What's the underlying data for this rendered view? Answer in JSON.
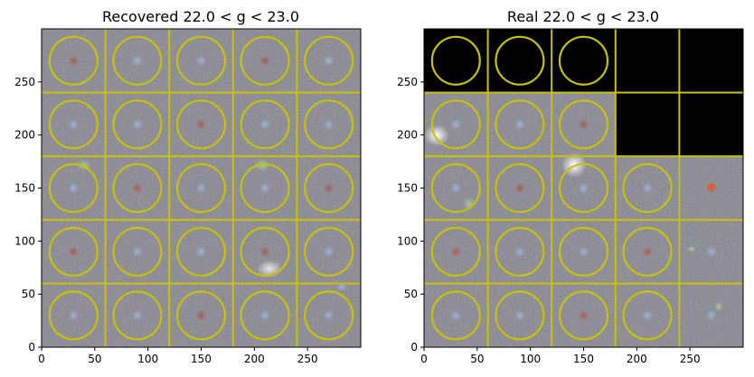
{
  "colors": {
    "grid_line": "#c8c10a",
    "ring": "#c8c10a",
    "noise_base": "#2f2f2f",
    "blank_cell": "#000000",
    "axis": "#000000"
  },
  "chart_data": [
    {
      "type": "image",
      "title": "Recovered 22.0 < g < 23.0",
      "xlabel": "",
      "ylabel": "",
      "xlim": [
        0,
        300
      ],
      "ylim": [
        0,
        300
      ],
      "xticks": [
        0,
        50,
        100,
        150,
        200,
        250
      ],
      "yticks": [
        0,
        50,
        100,
        150,
        200,
        250
      ],
      "grid": {
        "rows": 5,
        "cols": 5,
        "cell_size": 60
      },
      "cell_boundaries": [
        60,
        120,
        180,
        240
      ],
      "ring_center_offset": 30,
      "cells": [
        {
          "row": 0,
          "col": 0,
          "filled": true,
          "ring": true
        },
        {
          "row": 0,
          "col": 1,
          "filled": true,
          "ring": true
        },
        {
          "row": 0,
          "col": 2,
          "filled": true,
          "ring": true
        },
        {
          "row": 0,
          "col": 3,
          "filled": true,
          "ring": true
        },
        {
          "row": 0,
          "col": 4,
          "filled": true,
          "ring": true
        },
        {
          "row": 1,
          "col": 0,
          "filled": true,
          "ring": true
        },
        {
          "row": 1,
          "col": 1,
          "filled": true,
          "ring": true
        },
        {
          "row": 1,
          "col": 2,
          "filled": true,
          "ring": true
        },
        {
          "row": 1,
          "col": 3,
          "filled": true,
          "ring": true
        },
        {
          "row": 1,
          "col": 4,
          "filled": true,
          "ring": true
        },
        {
          "row": 2,
          "col": 0,
          "filled": true,
          "ring": true
        },
        {
          "row": 2,
          "col": 1,
          "filled": true,
          "ring": true
        },
        {
          "row": 2,
          "col": 2,
          "filled": true,
          "ring": true
        },
        {
          "row": 2,
          "col": 3,
          "filled": true,
          "ring": true
        },
        {
          "row": 2,
          "col": 4,
          "filled": true,
          "ring": true
        },
        {
          "row": 3,
          "col": 0,
          "filled": true,
          "ring": true
        },
        {
          "row": 3,
          "col": 1,
          "filled": true,
          "ring": true
        },
        {
          "row": 3,
          "col": 2,
          "filled": true,
          "ring": true
        },
        {
          "row": 3,
          "col": 3,
          "filled": true,
          "ring": true
        },
        {
          "row": 3,
          "col": 4,
          "filled": true,
          "ring": true
        },
        {
          "row": 4,
          "col": 0,
          "filled": true,
          "ring": true
        },
        {
          "row": 4,
          "col": 1,
          "filled": true,
          "ring": true
        },
        {
          "row": 4,
          "col": 2,
          "filled": true,
          "ring": true
        },
        {
          "row": 4,
          "col": 3,
          "filled": true,
          "ring": true
        },
        {
          "row": 4,
          "col": 4,
          "filled": true,
          "ring": true
        }
      ]
    },
    {
      "type": "image",
      "title": "Real 22.0 < g < 23.0",
      "xlabel": "",
      "ylabel": "",
      "xlim": [
        0,
        300
      ],
      "ylim": [
        0,
        300
      ],
      "xticks": [
        0,
        50,
        100,
        150,
        200,
        250
      ],
      "yticks": [
        0,
        50,
        100,
        150,
        200,
        250
      ],
      "grid": {
        "rows": 5,
        "cols": 5,
        "cell_size": 60
      },
      "cell_boundaries": [
        60,
        120,
        180,
        240
      ],
      "ring_center_offset": 30,
      "cells": [
        {
          "row": 0,
          "col": 0,
          "filled": false,
          "ring": true
        },
        {
          "row": 0,
          "col": 1,
          "filled": false,
          "ring": true
        },
        {
          "row": 0,
          "col": 2,
          "filled": false,
          "ring": true
        },
        {
          "row": 0,
          "col": 3,
          "filled": false,
          "ring": false
        },
        {
          "row": 0,
          "col": 4,
          "filled": false,
          "ring": false
        },
        {
          "row": 1,
          "col": 0,
          "filled": true,
          "ring": true
        },
        {
          "row": 1,
          "col": 1,
          "filled": true,
          "ring": true
        },
        {
          "row": 1,
          "col": 2,
          "filled": true,
          "ring": true
        },
        {
          "row": 1,
          "col": 3,
          "filled": false,
          "ring": false
        },
        {
          "row": 1,
          "col": 4,
          "filled": false,
          "ring": false
        },
        {
          "row": 2,
          "col": 0,
          "filled": true,
          "ring": true
        },
        {
          "row": 2,
          "col": 1,
          "filled": true,
          "ring": true
        },
        {
          "row": 2,
          "col": 2,
          "filled": true,
          "ring": true
        },
        {
          "row": 2,
          "col": 3,
          "filled": true,
          "ring": true
        },
        {
          "row": 2,
          "col": 4,
          "filled": true,
          "ring": false
        },
        {
          "row": 3,
          "col": 0,
          "filled": true,
          "ring": true
        },
        {
          "row": 3,
          "col": 1,
          "filled": true,
          "ring": true
        },
        {
          "row": 3,
          "col": 2,
          "filled": true,
          "ring": true
        },
        {
          "row": 3,
          "col": 3,
          "filled": true,
          "ring": true
        },
        {
          "row": 3,
          "col": 4,
          "filled": true,
          "ring": false
        },
        {
          "row": 4,
          "col": 0,
          "filled": true,
          "ring": true
        },
        {
          "row": 4,
          "col": 1,
          "filled": true,
          "ring": true
        },
        {
          "row": 4,
          "col": 2,
          "filled": true,
          "ring": true
        },
        {
          "row": 4,
          "col": 3,
          "filled": true,
          "ring": true
        },
        {
          "row": 4,
          "col": 4,
          "filled": true,
          "ring": false
        }
      ]
    }
  ]
}
